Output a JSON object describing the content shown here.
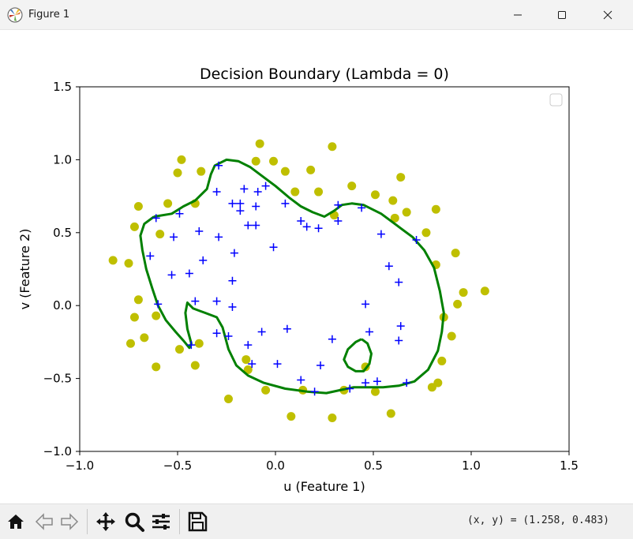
{
  "window": {
    "title": "Figure 1"
  },
  "toolbar": {
    "buttons": [
      {
        "name": "home-icon"
      },
      {
        "name": "back-icon"
      },
      {
        "name": "forward-icon"
      },
      {
        "name": "pan-icon"
      },
      {
        "name": "zoom-icon"
      },
      {
        "name": "configure-subplots-icon"
      },
      {
        "name": "save-icon"
      }
    ],
    "coords": "(x, y) = (1.258, 0.483)"
  },
  "chart_data": {
    "type": "scatter",
    "title": "Decision Boundary (Lambda = 0)",
    "xlabel": "u (Feature 1)",
    "ylabel": "v (Feature 2)",
    "xlim": [
      -1.0,
      1.5
    ],
    "ylim": [
      -1.0,
      1.5
    ],
    "xticks": [
      "−1.0",
      "−0.5",
      "0.0",
      "0.5",
      "1.0",
      "1.5"
    ],
    "yticks": [
      "−1.0",
      "−0.5",
      "0.0",
      "0.5",
      "1.0",
      "1.5"
    ],
    "xtick_values": [
      -1.0,
      -0.5,
      0.0,
      0.5,
      1.0,
      1.5
    ],
    "ytick_values": [
      -1.0,
      -0.5,
      0.0,
      0.5,
      1.0,
      1.5
    ],
    "grid": false,
    "legend": "top-right (empty)",
    "colors": {
      "positive": "#0000ff",
      "negative": "#bfbf00",
      "boundary": "#008000"
    },
    "positive_points": [
      [
        -0.29,
        0.96
      ],
      [
        -0.3,
        0.78
      ],
      [
        -0.16,
        0.8
      ],
      [
        -0.09,
        0.78
      ],
      [
        -0.05,
        0.82
      ],
      [
        -0.22,
        0.7
      ],
      [
        -0.18,
        0.7
      ],
      [
        -0.18,
        0.65
      ],
      [
        -0.1,
        0.68
      ],
      [
        0.05,
        0.7
      ],
      [
        -0.61,
        0.6
      ],
      [
        -0.49,
        0.63
      ],
      [
        -0.52,
        0.47
      ],
      [
        -0.39,
        0.51
      ],
      [
        -0.29,
        0.47
      ],
      [
        -0.14,
        0.55
      ],
      [
        -0.1,
        0.55
      ],
      [
        -0.64,
        0.34
      ],
      [
        -0.37,
        0.31
      ],
      [
        -0.21,
        0.36
      ],
      [
        -0.01,
        0.4
      ],
      [
        0.13,
        0.58
      ],
      [
        0.16,
        0.54
      ],
      [
        0.22,
        0.53
      ],
      [
        0.32,
        0.69
      ],
      [
        0.32,
        0.58
      ],
      [
        0.44,
        0.67
      ],
      [
        0.54,
        0.49
      ],
      [
        0.58,
        0.27
      ],
      [
        0.63,
        0.16
      ],
      [
        0.72,
        0.45
      ],
      [
        -0.53,
        0.21
      ],
      [
        -0.44,
        0.22
      ],
      [
        -0.22,
        0.17
      ],
      [
        -0.6,
        0.01
      ],
      [
        -0.41,
        0.03
      ],
      [
        -0.3,
        0.03
      ],
      [
        -0.22,
        -0.01
      ],
      [
        0.46,
        0.01
      ],
      [
        -0.43,
        -0.27
      ],
      [
        -0.3,
        -0.19
      ],
      [
        -0.24,
        -0.21
      ],
      [
        -0.14,
        -0.27
      ],
      [
        -0.07,
        -0.18
      ],
      [
        0.06,
        -0.16
      ],
      [
        0.29,
        -0.23
      ],
      [
        0.48,
        -0.18
      ],
      [
        0.64,
        -0.14
      ],
      [
        0.63,
        -0.24
      ],
      [
        -0.12,
        -0.4
      ],
      [
        0.01,
        -0.4
      ],
      [
        0.23,
        -0.41
      ],
      [
        0.13,
        -0.51
      ],
      [
        0.2,
        -0.59
      ],
      [
        0.38,
        -0.57
      ],
      [
        0.46,
        -0.53
      ],
      [
        0.52,
        -0.52
      ],
      [
        0.67,
        -0.53
      ]
    ],
    "negative_points": [
      [
        -0.08,
        1.11
      ],
      [
        0.29,
        1.09
      ],
      [
        -0.48,
        1.0
      ],
      [
        -0.1,
        0.99
      ],
      [
        -0.01,
        0.99
      ],
      [
        -0.5,
        0.91
      ],
      [
        -0.38,
        0.92
      ],
      [
        0.05,
        0.92
      ],
      [
        0.18,
        0.93
      ],
      [
        0.64,
        0.88
      ],
      [
        0.1,
        0.78
      ],
      [
        0.22,
        0.78
      ],
      [
        0.39,
        0.82
      ],
      [
        0.51,
        0.76
      ],
      [
        -0.7,
        0.68
      ],
      [
        -0.55,
        0.7
      ],
      [
        -0.41,
        0.7
      ],
      [
        0.6,
        0.72
      ],
      [
        0.67,
        0.64
      ],
      [
        0.82,
        0.66
      ],
      [
        -0.72,
        0.54
      ],
      [
        -0.59,
        0.49
      ],
      [
        0.3,
        0.62
      ],
      [
        0.61,
        0.6
      ],
      [
        0.77,
        0.5
      ],
      [
        -0.83,
        0.31
      ],
      [
        -0.75,
        0.29
      ],
      [
        0.92,
        0.36
      ],
      [
        0.82,
        0.28
      ],
      [
        0.96,
        0.09
      ],
      [
        1.07,
        0.1
      ],
      [
        -0.7,
        0.04
      ],
      [
        0.93,
        0.01
      ],
      [
        -0.72,
        -0.08
      ],
      [
        -0.61,
        -0.07
      ],
      [
        0.86,
        -0.08
      ],
      [
        -0.67,
        -0.22
      ],
      [
        -0.74,
        -0.26
      ],
      [
        -0.39,
        -0.26
      ],
      [
        -0.49,
        -0.3
      ],
      [
        0.9,
        -0.21
      ],
      [
        -0.61,
        -0.42
      ],
      [
        -0.41,
        -0.41
      ],
      [
        -0.15,
        -0.37
      ],
      [
        -0.14,
        -0.44
      ],
      [
        0.85,
        -0.38
      ],
      [
        0.46,
        -0.42
      ],
      [
        -0.05,
        -0.58
      ],
      [
        0.14,
        -0.58
      ],
      [
        0.35,
        -0.58
      ],
      [
        0.51,
        -0.59
      ],
      [
        0.8,
        -0.56
      ],
      [
        0.83,
        -0.53
      ],
      [
        -0.24,
        -0.64
      ],
      [
        0.08,
        -0.76
      ],
      [
        0.29,
        -0.77
      ],
      [
        0.59,
        -0.74
      ]
    ],
    "boundary_main": [
      [
        -0.62,
        0.61
      ],
      [
        -0.53,
        0.63
      ],
      [
        -0.47,
        0.68
      ],
      [
        -0.41,
        0.72
      ],
      [
        -0.35,
        0.8
      ],
      [
        -0.33,
        0.9
      ],
      [
        -0.31,
        0.96
      ],
      [
        -0.25,
        1.0
      ],
      [
        -0.19,
        0.99
      ],
      [
        -0.13,
        0.95
      ],
      [
        -0.07,
        0.89
      ],
      [
        0.0,
        0.82
      ],
      [
        0.07,
        0.74
      ],
      [
        0.13,
        0.68
      ],
      [
        0.19,
        0.64
      ],
      [
        0.25,
        0.61
      ],
      [
        0.3,
        0.65
      ],
      [
        0.34,
        0.69
      ],
      [
        0.39,
        0.7
      ],
      [
        0.45,
        0.69
      ],
      [
        0.54,
        0.63
      ],
      [
        0.62,
        0.55
      ],
      [
        0.7,
        0.47
      ],
      [
        0.76,
        0.38
      ],
      [
        0.81,
        0.26
      ],
      [
        0.84,
        0.1
      ],
      [
        0.86,
        -0.05
      ],
      [
        0.85,
        -0.18
      ],
      [
        0.83,
        -0.31
      ],
      [
        0.78,
        -0.44
      ],
      [
        0.71,
        -0.52
      ],
      [
        0.63,
        -0.55
      ],
      [
        0.55,
        -0.56
      ],
      [
        0.47,
        -0.56
      ],
      [
        0.4,
        -0.56
      ],
      [
        0.33,
        -0.58
      ],
      [
        0.26,
        -0.6
      ],
      [
        0.16,
        -0.59
      ],
      [
        0.05,
        -0.57
      ],
      [
        -0.06,
        -0.53
      ],
      [
        -0.14,
        -0.48
      ],
      [
        -0.2,
        -0.41
      ],
      [
        -0.24,
        -0.3
      ],
      [
        -0.27,
        -0.15
      ],
      [
        -0.3,
        -0.08
      ],
      [
        -0.36,
        -0.05
      ],
      [
        -0.42,
        -0.02
      ],
      [
        -0.45,
        0.02
      ],
      [
        -0.46,
        -0.05
      ],
      [
        -0.45,
        -0.16
      ],
      [
        -0.43,
        -0.26
      ],
      [
        -0.44,
        -0.29
      ],
      [
        -0.47,
        -0.24
      ],
      [
        -0.51,
        -0.18
      ],
      [
        -0.56,
        -0.1
      ],
      [
        -0.6,
        0.0
      ],
      [
        -0.63,
        0.12
      ],
      [
        -0.66,
        0.25
      ],
      [
        -0.68,
        0.38
      ],
      [
        -0.69,
        0.48
      ],
      [
        -0.67,
        0.56
      ],
      [
        -0.62,
        0.61
      ]
    ],
    "boundary_loop": [
      [
        0.44,
        -0.23
      ],
      [
        0.47,
        -0.26
      ],
      [
        0.49,
        -0.33
      ],
      [
        0.48,
        -0.4
      ],
      [
        0.45,
        -0.45
      ],
      [
        0.41,
        -0.45
      ],
      [
        0.37,
        -0.42
      ],
      [
        0.35,
        -0.37
      ],
      [
        0.37,
        -0.3
      ],
      [
        0.41,
        -0.25
      ],
      [
        0.44,
        -0.23
      ]
    ]
  }
}
